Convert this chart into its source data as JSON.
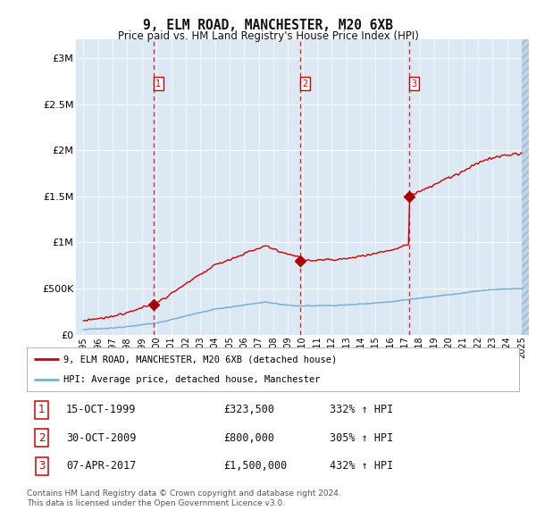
{
  "title": "9, ELM ROAD, MANCHESTER, M20 6XB",
  "subtitle": "Price paid vs. HM Land Registry's House Price Index (HPI)",
  "legend_property": "9, ELM ROAD, MANCHESTER, M20 6XB (detached house)",
  "legend_hpi": "HPI: Average price, detached house, Manchester",
  "footnote1": "Contains HM Land Registry data © Crown copyright and database right 2024.",
  "footnote2": "This data is licensed under the Open Government Licence v3.0.",
  "sales": [
    {
      "num": 1,
      "date": "15-OCT-1999",
      "price": 323500,
      "pct": "332%",
      "year": 1999.79
    },
    {
      "num": 2,
      "date": "30-OCT-2009",
      "price": 800000,
      "pct": "305%",
      "year": 2009.83
    },
    {
      "num": 3,
      "date": "07-APR-2017",
      "price": 1500000,
      "pct": "432%",
      "year": 2017.27
    }
  ],
  "xlim": [
    1994.5,
    2025.5
  ],
  "ylim": [
    0,
    3200000
  ],
  "yticks": [
    0,
    500000,
    1000000,
    1500000,
    2000000,
    2500000,
    3000000
  ],
  "ytick_labels": [
    "£0",
    "£500K",
    "£1M",
    "£1.5M",
    "£2M",
    "£2.5M",
    "£3M"
  ],
  "xticks": [
    1995,
    1996,
    1997,
    1998,
    1999,
    2000,
    2001,
    2002,
    2003,
    2004,
    2005,
    2006,
    2007,
    2008,
    2009,
    2010,
    2011,
    2012,
    2013,
    2014,
    2015,
    2016,
    2017,
    2018,
    2019,
    2020,
    2021,
    2022,
    2023,
    2024,
    2025
  ],
  "background_color": "#dce9f5",
  "red_color": "#cc0000",
  "blue_color": "#7ab0d4",
  "grid_color": "#ffffff",
  "sale_marker_color": "#aa0000",
  "sale_box_color": "#cc0000",
  "hatch_color": "#c0d4e8",
  "fig_width": 6.0,
  "fig_height": 5.9,
  "dpi": 100
}
